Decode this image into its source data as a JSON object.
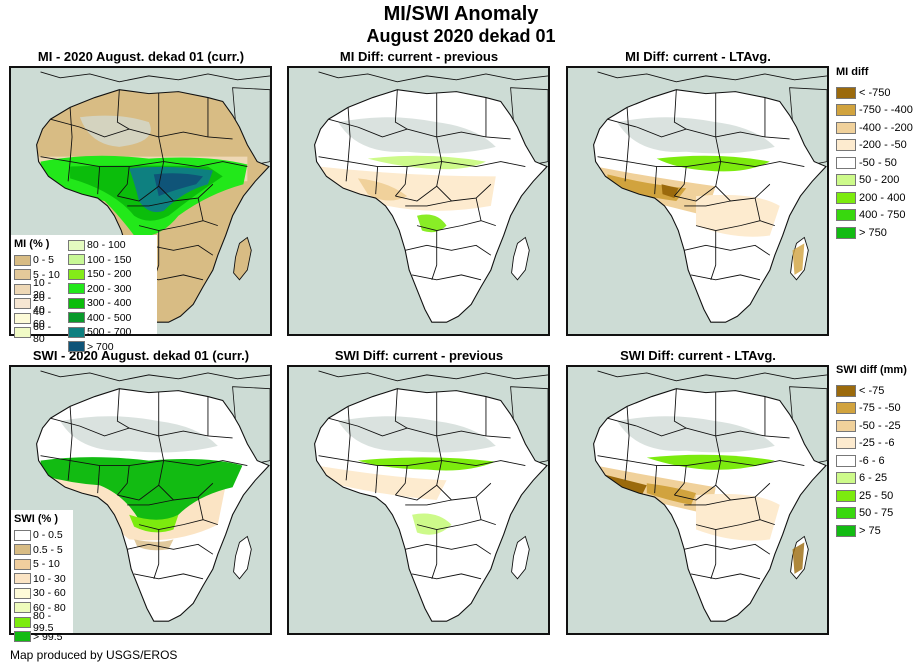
{
  "header": {
    "title": "MI/SWI Anomaly",
    "subtitle": "August 2020 dekad 01"
  },
  "panels": [
    {
      "id": "mi-curr",
      "title": "MI - 2020 August. dekad 01 (curr.)",
      "variable": "MI",
      "kind": "current"
    },
    {
      "id": "mi-diff-prev",
      "title": "MI Diff: current - previous",
      "variable": "MI",
      "kind": "diff"
    },
    {
      "id": "mi-diff-lta",
      "title": "MI Diff: current - LTAvg.",
      "variable": "MI",
      "kind": "diff"
    },
    {
      "id": "swi-curr",
      "title": "SWI - 2020 August. dekad 01 (curr.)",
      "variable": "SWI",
      "kind": "current"
    },
    {
      "id": "swi-diff-prev",
      "title": "SWI Diff: current - previous",
      "variable": "SWI",
      "kind": "diff"
    },
    {
      "id": "swi-diff-lta",
      "title": "SWI Diff: current - LTAvg.",
      "variable": "SWI",
      "kind": "diff"
    }
  ],
  "legends": {
    "mi_pct": {
      "title": "MI (% )",
      "items": [
        {
          "label": "0 - 5",
          "color": "#d8bc84"
        },
        {
          "label": "5 - 10",
          "color": "#e3c99a"
        },
        {
          "label": "10 - 20",
          "color": "#eed8b6"
        },
        {
          "label": "20 - 40",
          "color": "#f6e6d2"
        },
        {
          "label": "40 - 60",
          "color": "#fdfbd8"
        },
        {
          "label": "60 - 80",
          "color": "#f1fbc6"
        },
        {
          "label": "80 - 100",
          "color": "#e4fbc0"
        },
        {
          "label": "100 - 150",
          "color": "#c8f896"
        },
        {
          "label": "150 - 200",
          "color": "#84ec18"
        },
        {
          "label": "200 - 300",
          "color": "#22e81a"
        },
        {
          "label": "300 - 400",
          "color": "#0bbd0b"
        },
        {
          "label": "400 - 500",
          "color": "#089a2a"
        },
        {
          "label": "500 - 700",
          "color": "#0e8080"
        },
        {
          "label": "> 700",
          "color": "#0f5478"
        }
      ]
    },
    "mi_diff": {
      "title": "MI diff",
      "items": [
        {
          "label": "< -750",
          "color": "#9b6a0c"
        },
        {
          "label": "-750 - -400",
          "color": "#d1a33e"
        },
        {
          "label": "-400 - -200",
          "color": "#f0d19b"
        },
        {
          "label": "-200 - -50",
          "color": "#fdebcf"
        },
        {
          "label": "-50 - 50",
          "color": "#ffffff"
        },
        {
          "label": "50 - 200",
          "color": "#cdfa8a"
        },
        {
          "label": "200 - 400",
          "color": "#7ceb0e"
        },
        {
          "label": "400 - 750",
          "color": "#38d80e"
        },
        {
          "label": "> 750",
          "color": "#12bb12"
        }
      ]
    },
    "swi_pct": {
      "title": "SWI (% )",
      "items": [
        {
          "label": "0 - 0.5",
          "color": "#ffffff"
        },
        {
          "label": "0.5 - 5",
          "color": "#d8bc84"
        },
        {
          "label": "5 - 10",
          "color": "#f0ce9e"
        },
        {
          "label": "10 - 30",
          "color": "#fbe4c4"
        },
        {
          "label": "30 - 60",
          "color": "#fefbd8"
        },
        {
          "label": "60 - 80",
          "color": "#eefcbc"
        },
        {
          "label": "80 - 99.5",
          "color": "#7ceb0e"
        },
        {
          "label": "> 99.5",
          "color": "#12bb12"
        }
      ]
    },
    "swi_diff": {
      "title": "SWI diff (mm)",
      "items": [
        {
          "label": "< -75",
          "color": "#9b6a0c"
        },
        {
          "label": "-75 - -50",
          "color": "#d1a33e"
        },
        {
          "label": "-50 - -25",
          "color": "#f0d19b"
        },
        {
          "label": "-25 - -6",
          "color": "#fdebcf"
        },
        {
          "label": "-6 - 6",
          "color": "#ffffff"
        },
        {
          "label": "6 - 25",
          "color": "#cdfa8a"
        },
        {
          "label": "25 - 50",
          "color": "#7ceb0e"
        },
        {
          "label": "50 - 75",
          "color": "#38d80e"
        },
        {
          "label": "> 75",
          "color": "#12bb12"
        }
      ]
    }
  },
  "colors": {
    "ocean": "#cddcd5",
    "nodata": "#d3ddd9",
    "border": "#111111"
  },
  "footer": {
    "credit": "Map produced by USGS/EROS"
  }
}
